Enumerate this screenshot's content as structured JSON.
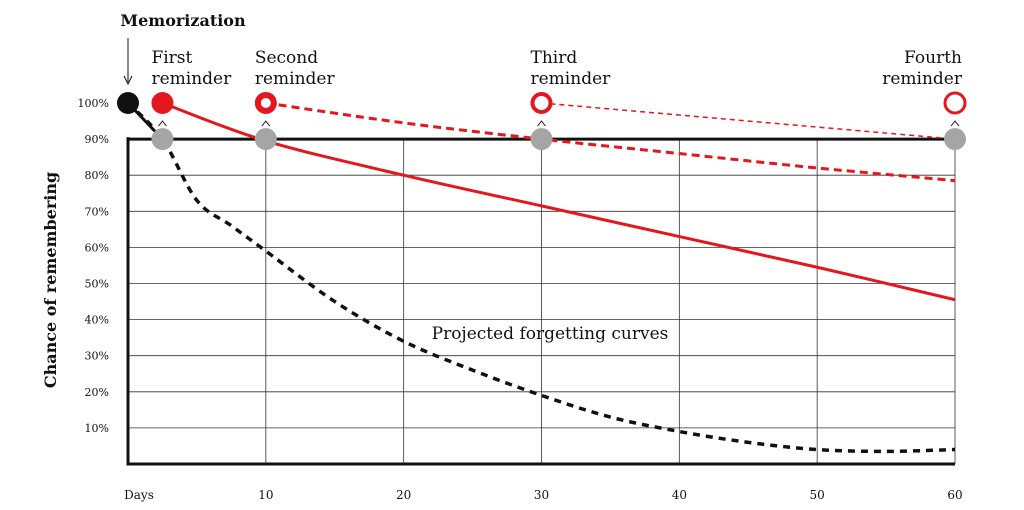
{
  "chart_data": {
    "type": "line",
    "title": "Memorization",
    "ylabel": "Chance of remembering",
    "xlabel": "",
    "x_origin_label": "Days",
    "x_ticks": [
      10,
      20,
      30,
      40,
      50,
      60
    ],
    "y_ticks": [
      "10%",
      "20%",
      "30%",
      "40%",
      "50%",
      "60%",
      "70%",
      "80%",
      "90%",
      "100%"
    ],
    "y_tick_values": [
      10,
      20,
      30,
      40,
      50,
      60,
      70,
      80,
      90,
      100
    ],
    "xlim": [
      0,
      60
    ],
    "ylim": [
      0,
      100
    ],
    "grid": true,
    "threshold": 90,
    "reminders": [
      {
        "label_line1": "First",
        "label_line2": "reminder",
        "x": 2.5
      },
      {
        "label_line1": "Second",
        "label_line2": "reminder",
        "x": 10
      },
      {
        "label_line1": "Third",
        "label_line2": "reminder",
        "x": 30
      },
      {
        "label_line1": "Fourth",
        "label_line2": "reminder",
        "x": 60
      }
    ],
    "annotation": "Projected forgetting curves",
    "series": [
      {
        "style": "black-dotted",
        "x": [
          0,
          2.5,
          5,
          7.5,
          10,
          15,
          20,
          25,
          30,
          35,
          40,
          45,
          50,
          55,
          60
        ],
        "values": [
          100,
          90,
          73,
          66,
          59,
          45,
          34,
          26,
          19,
          13,
          9,
          6,
          4,
          3.5,
          4
        ]
      },
      {
        "style": "red-solid",
        "x": [
          2.5,
          10,
          20,
          30,
          40,
          50,
          60
        ],
        "values": [
          100,
          89.5,
          80,
          71.5,
          63,
          54.5,
          45.5
        ]
      },
      {
        "style": "red-dashed",
        "x": [
          10,
          20,
          30,
          40,
          50,
          60
        ],
        "values": [
          100,
          94.5,
          90,
          86,
          82,
          78.5
        ]
      },
      {
        "style": "red-thin-dashed",
        "x": [
          30,
          60
        ],
        "values": [
          100,
          90
        ]
      }
    ],
    "markers": [
      {
        "x": 0,
        "y": 100,
        "kind": "black-filled"
      },
      {
        "x": 2.5,
        "y": 100,
        "kind": "red-filled"
      },
      {
        "x": 10,
        "y": 100,
        "kind": "red-ring-small"
      },
      {
        "x": 30,
        "y": 100,
        "kind": "red-ring"
      },
      {
        "x": 60,
        "y": 100,
        "kind": "red-ring-large"
      },
      {
        "x": 2.5,
        "y": 90,
        "kind": "gray"
      },
      {
        "x": 10,
        "y": 90,
        "kind": "gray"
      },
      {
        "x": 30,
        "y": 90,
        "kind": "gray"
      },
      {
        "x": 60,
        "y": 90,
        "kind": "gray"
      }
    ],
    "colors": {
      "red": "#e3171d",
      "black": "#111111",
      "gray": "#a5a5a5",
      "grid": "#333333"
    }
  }
}
